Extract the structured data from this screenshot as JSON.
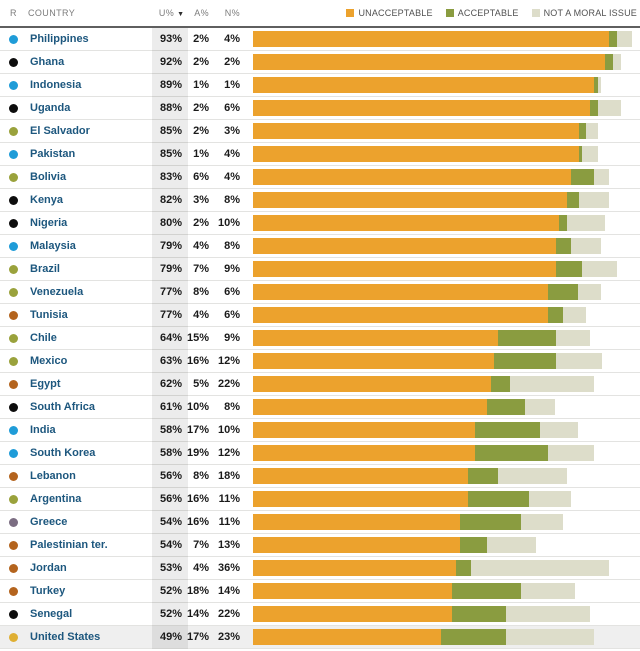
{
  "header": {
    "region_col": "R",
    "country_col": "COUNTRY",
    "u_col": "U%",
    "sort_indicator": "▼",
    "a_col": "A%",
    "n_col": "N%"
  },
  "legend": [
    {
      "label": "UNACCEPTABLE",
      "color": "#ECA22D"
    },
    {
      "label": "ACCEPTABLE",
      "color": "#8A9C40"
    },
    {
      "label": "NOT A MORAL ISSUE",
      "color": "#DDDDCA"
    }
  ],
  "region_colors": {
    "asia": "#1F9CD8",
    "africa": "#0d0d0d",
    "latam": "#9AA23C",
    "mideast": "#B4641E",
    "europe": "#7B6D82",
    "us": "#DFAF33"
  },
  "rows": [
    {
      "country": "Philippines",
      "region": "asia",
      "u": "93%",
      "a": "2%",
      "n": "4%",
      "u_val": 93,
      "a_val": 2,
      "n_val": 4,
      "highlight": false
    },
    {
      "country": "Ghana",
      "region": "africa",
      "u": "92%",
      "a": "2%",
      "n": "2%",
      "u_val": 92,
      "a_val": 2,
      "n_val": 2,
      "highlight": false
    },
    {
      "country": "Indonesia",
      "region": "asia",
      "u": "89%",
      "a": "1%",
      "n": "1%",
      "u_val": 89,
      "a_val": 1,
      "n_val": 1,
      "highlight": false
    },
    {
      "country": "Uganda",
      "region": "africa",
      "u": "88%",
      "a": "2%",
      "n": "6%",
      "u_val": 88,
      "a_val": 2,
      "n_val": 6,
      "highlight": false
    },
    {
      "country": "El Salvador",
      "region": "latam",
      "u": "85%",
      "a": "2%",
      "n": "3%",
      "u_val": 85,
      "a_val": 2,
      "n_val": 3,
      "highlight": false
    },
    {
      "country": "Pakistan",
      "region": "asia",
      "u": "85%",
      "a": "1%",
      "n": "4%",
      "u_val": 85,
      "a_val": 1,
      "n_val": 4,
      "highlight": false
    },
    {
      "country": "Bolivia",
      "region": "latam",
      "u": "83%",
      "a": "6%",
      "n": "4%",
      "u_val": 83,
      "a_val": 6,
      "n_val": 4,
      "highlight": false
    },
    {
      "country": "Kenya",
      "region": "africa",
      "u": "82%",
      "a": "3%",
      "n": "8%",
      "u_val": 82,
      "a_val": 3,
      "n_val": 8,
      "highlight": false
    },
    {
      "country": "Nigeria",
      "region": "africa",
      "u": "80%",
      "a": "2%",
      "n": "10%",
      "u_val": 80,
      "a_val": 2,
      "n_val": 10,
      "highlight": false
    },
    {
      "country": "Malaysia",
      "region": "asia",
      "u": "79%",
      "a": "4%",
      "n": "8%",
      "u_val": 79,
      "a_val": 4,
      "n_val": 8,
      "highlight": false
    },
    {
      "country": "Brazil",
      "region": "latam",
      "u": "79%",
      "a": "7%",
      "n": "9%",
      "u_val": 79,
      "a_val": 7,
      "n_val": 9,
      "highlight": false
    },
    {
      "country": "Venezuela",
      "region": "latam",
      "u": "77%",
      "a": "8%",
      "n": "6%",
      "u_val": 77,
      "a_val": 8,
      "n_val": 6,
      "highlight": false
    },
    {
      "country": "Tunisia",
      "region": "mideast",
      "u": "77%",
      "a": "4%",
      "n": "6%",
      "u_val": 77,
      "a_val": 4,
      "n_val": 6,
      "highlight": false
    },
    {
      "country": "Chile",
      "region": "latam",
      "u": "64%",
      "a": "15%",
      "n": "9%",
      "u_val": 64,
      "a_val": 15,
      "n_val": 9,
      "highlight": false
    },
    {
      "country": "Mexico",
      "region": "latam",
      "u": "63%",
      "a": "16%",
      "n": "12%",
      "u_val": 63,
      "a_val": 16,
      "n_val": 12,
      "highlight": false
    },
    {
      "country": "Egypt",
      "region": "mideast",
      "u": "62%",
      "a": "5%",
      "n": "22%",
      "u_val": 62,
      "a_val": 5,
      "n_val": 22,
      "highlight": false
    },
    {
      "country": "South Africa",
      "region": "africa",
      "u": "61%",
      "a": "10%",
      "n": "8%",
      "u_val": 61,
      "a_val": 10,
      "n_val": 8,
      "highlight": false
    },
    {
      "country": "India",
      "region": "asia",
      "u": "58%",
      "a": "17%",
      "n": "10%",
      "u_val": 58,
      "a_val": 17,
      "n_val": 10,
      "highlight": false
    },
    {
      "country": "South Korea",
      "region": "asia",
      "u": "58%",
      "a": "19%",
      "n": "12%",
      "u_val": 58,
      "a_val": 19,
      "n_val": 12,
      "highlight": false
    },
    {
      "country": "Lebanon",
      "region": "mideast",
      "u": "56%",
      "a": "8%",
      "n": "18%",
      "u_val": 56,
      "a_val": 8,
      "n_val": 18,
      "highlight": false
    },
    {
      "country": "Argentina",
      "region": "latam",
      "u": "56%",
      "a": "16%",
      "n": "11%",
      "u_val": 56,
      "a_val": 16,
      "n_val": 11,
      "highlight": false
    },
    {
      "country": "Greece",
      "region": "europe",
      "u": "54%",
      "a": "16%",
      "n": "11%",
      "u_val": 54,
      "a_val": 16,
      "n_val": 11,
      "highlight": false
    },
    {
      "country": "Palestinian ter.",
      "region": "mideast",
      "u": "54%",
      "a": "7%",
      "n": "13%",
      "u_val": 54,
      "a_val": 7,
      "n_val": 13,
      "highlight": false
    },
    {
      "country": "Jordan",
      "region": "mideast",
      "u": "53%",
      "a": "4%",
      "n": "36%",
      "u_val": 53,
      "a_val": 4,
      "n_val": 36,
      "highlight": false
    },
    {
      "country": "Turkey",
      "region": "mideast",
      "u": "52%",
      "a": "18%",
      "n": "14%",
      "u_val": 52,
      "a_val": 18,
      "n_val": 14,
      "highlight": false
    },
    {
      "country": "Senegal",
      "region": "africa",
      "u": "52%",
      "a": "14%",
      "n": "22%",
      "u_val": 52,
      "a_val": 14,
      "n_val": 22,
      "highlight": false
    },
    {
      "country": "United States",
      "region": "us",
      "u": "49%",
      "a": "17%",
      "n": "23%",
      "u_val": 49,
      "a_val": 17,
      "n_val": 23,
      "highlight": true
    }
  ],
  "chart_data": {
    "type": "bar",
    "stacked": true,
    "orientation": "horizontal",
    "categories": [
      "Philippines",
      "Ghana",
      "Indonesia",
      "Uganda",
      "El Salvador",
      "Pakistan",
      "Bolivia",
      "Kenya",
      "Nigeria",
      "Malaysia",
      "Brazil",
      "Venezuela",
      "Tunisia",
      "Chile",
      "Mexico",
      "Egypt",
      "South Africa",
      "India",
      "South Korea",
      "Lebanon",
      "Argentina",
      "Greece",
      "Palestinian ter.",
      "Jordan",
      "Turkey",
      "Senegal",
      "United States"
    ],
    "series": [
      {
        "name": "UNACCEPTABLE",
        "color": "#ECA22D",
        "values": [
          93,
          92,
          89,
          88,
          85,
          85,
          83,
          82,
          80,
          79,
          79,
          77,
          77,
          64,
          63,
          62,
          61,
          58,
          58,
          56,
          56,
          54,
          54,
          53,
          52,
          52,
          49
        ]
      },
      {
        "name": "ACCEPTABLE",
        "color": "#8A9C40",
        "values": [
          2,
          2,
          1,
          2,
          2,
          1,
          6,
          3,
          2,
          4,
          7,
          8,
          4,
          15,
          16,
          5,
          10,
          17,
          19,
          8,
          16,
          16,
          7,
          4,
          18,
          14,
          17
        ]
      },
      {
        "name": "NOT A MORAL ISSUE",
        "color": "#DDDDCA",
        "values": [
          4,
          2,
          1,
          6,
          3,
          4,
          4,
          8,
          10,
          8,
          9,
          6,
          6,
          9,
          12,
          22,
          8,
          10,
          12,
          18,
          11,
          11,
          13,
          36,
          14,
          22,
          23
        ]
      }
    ],
    "xlim": [
      0,
      100
    ],
    "grid": false,
    "legend_position": "top-right",
    "sorted_by": "U% descending",
    "highlighted_category": "United States"
  }
}
